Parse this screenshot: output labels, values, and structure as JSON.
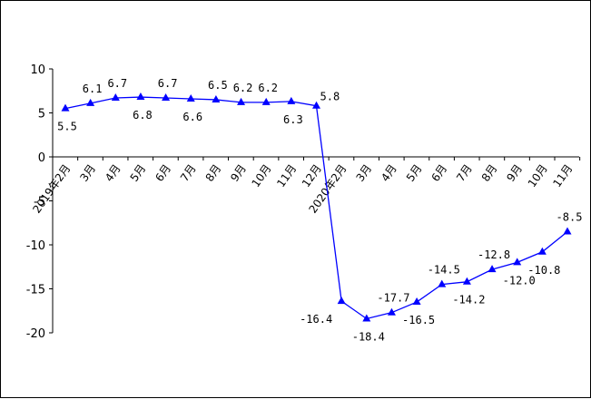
{
  "chart_data": {
    "type": "line",
    "title": "",
    "xlabel": "",
    "ylabel": "",
    "ylim": [
      -20,
      10
    ],
    "yticks": [
      10,
      5,
      0,
      -5,
      -10,
      -15,
      -20
    ],
    "grid": false,
    "legend": "none",
    "categories": [
      "2019年2月",
      "3月",
      "4月",
      "5月",
      "6月",
      "7月",
      "8月",
      "9月",
      "10月",
      "11月",
      "12月",
      "2020年2月",
      "3月",
      "4月",
      "5月",
      "6月",
      "7月",
      "8月",
      "9月",
      "10月",
      "11月"
    ],
    "series": [
      {
        "color": "#0000ff",
        "marker": "triangle",
        "values": [
          5.5,
          6.1,
          6.7,
          6.8,
          6.7,
          6.6,
          6.5,
          6.2,
          6.2,
          6.3,
          5.8,
          -16.4,
          -18.4,
          -17.7,
          -16.5,
          -14.5,
          -14.2,
          -12.8,
          -12.0,
          -10.8,
          -8.5
        ]
      }
    ],
    "data_labels": [
      "5.5",
      "6.1",
      "6.7",
      "6.8",
      "6.7",
      "6.6",
      "6.5",
      "6.2",
      "6.2",
      "6.3",
      "5.8",
      "-16.4",
      "-18.4",
      "-17.7",
      "-16.5",
      "-14.5",
      "-14.2",
      "-12.8",
      "-12.0",
      "-10.8",
      "-8.5"
    ]
  }
}
